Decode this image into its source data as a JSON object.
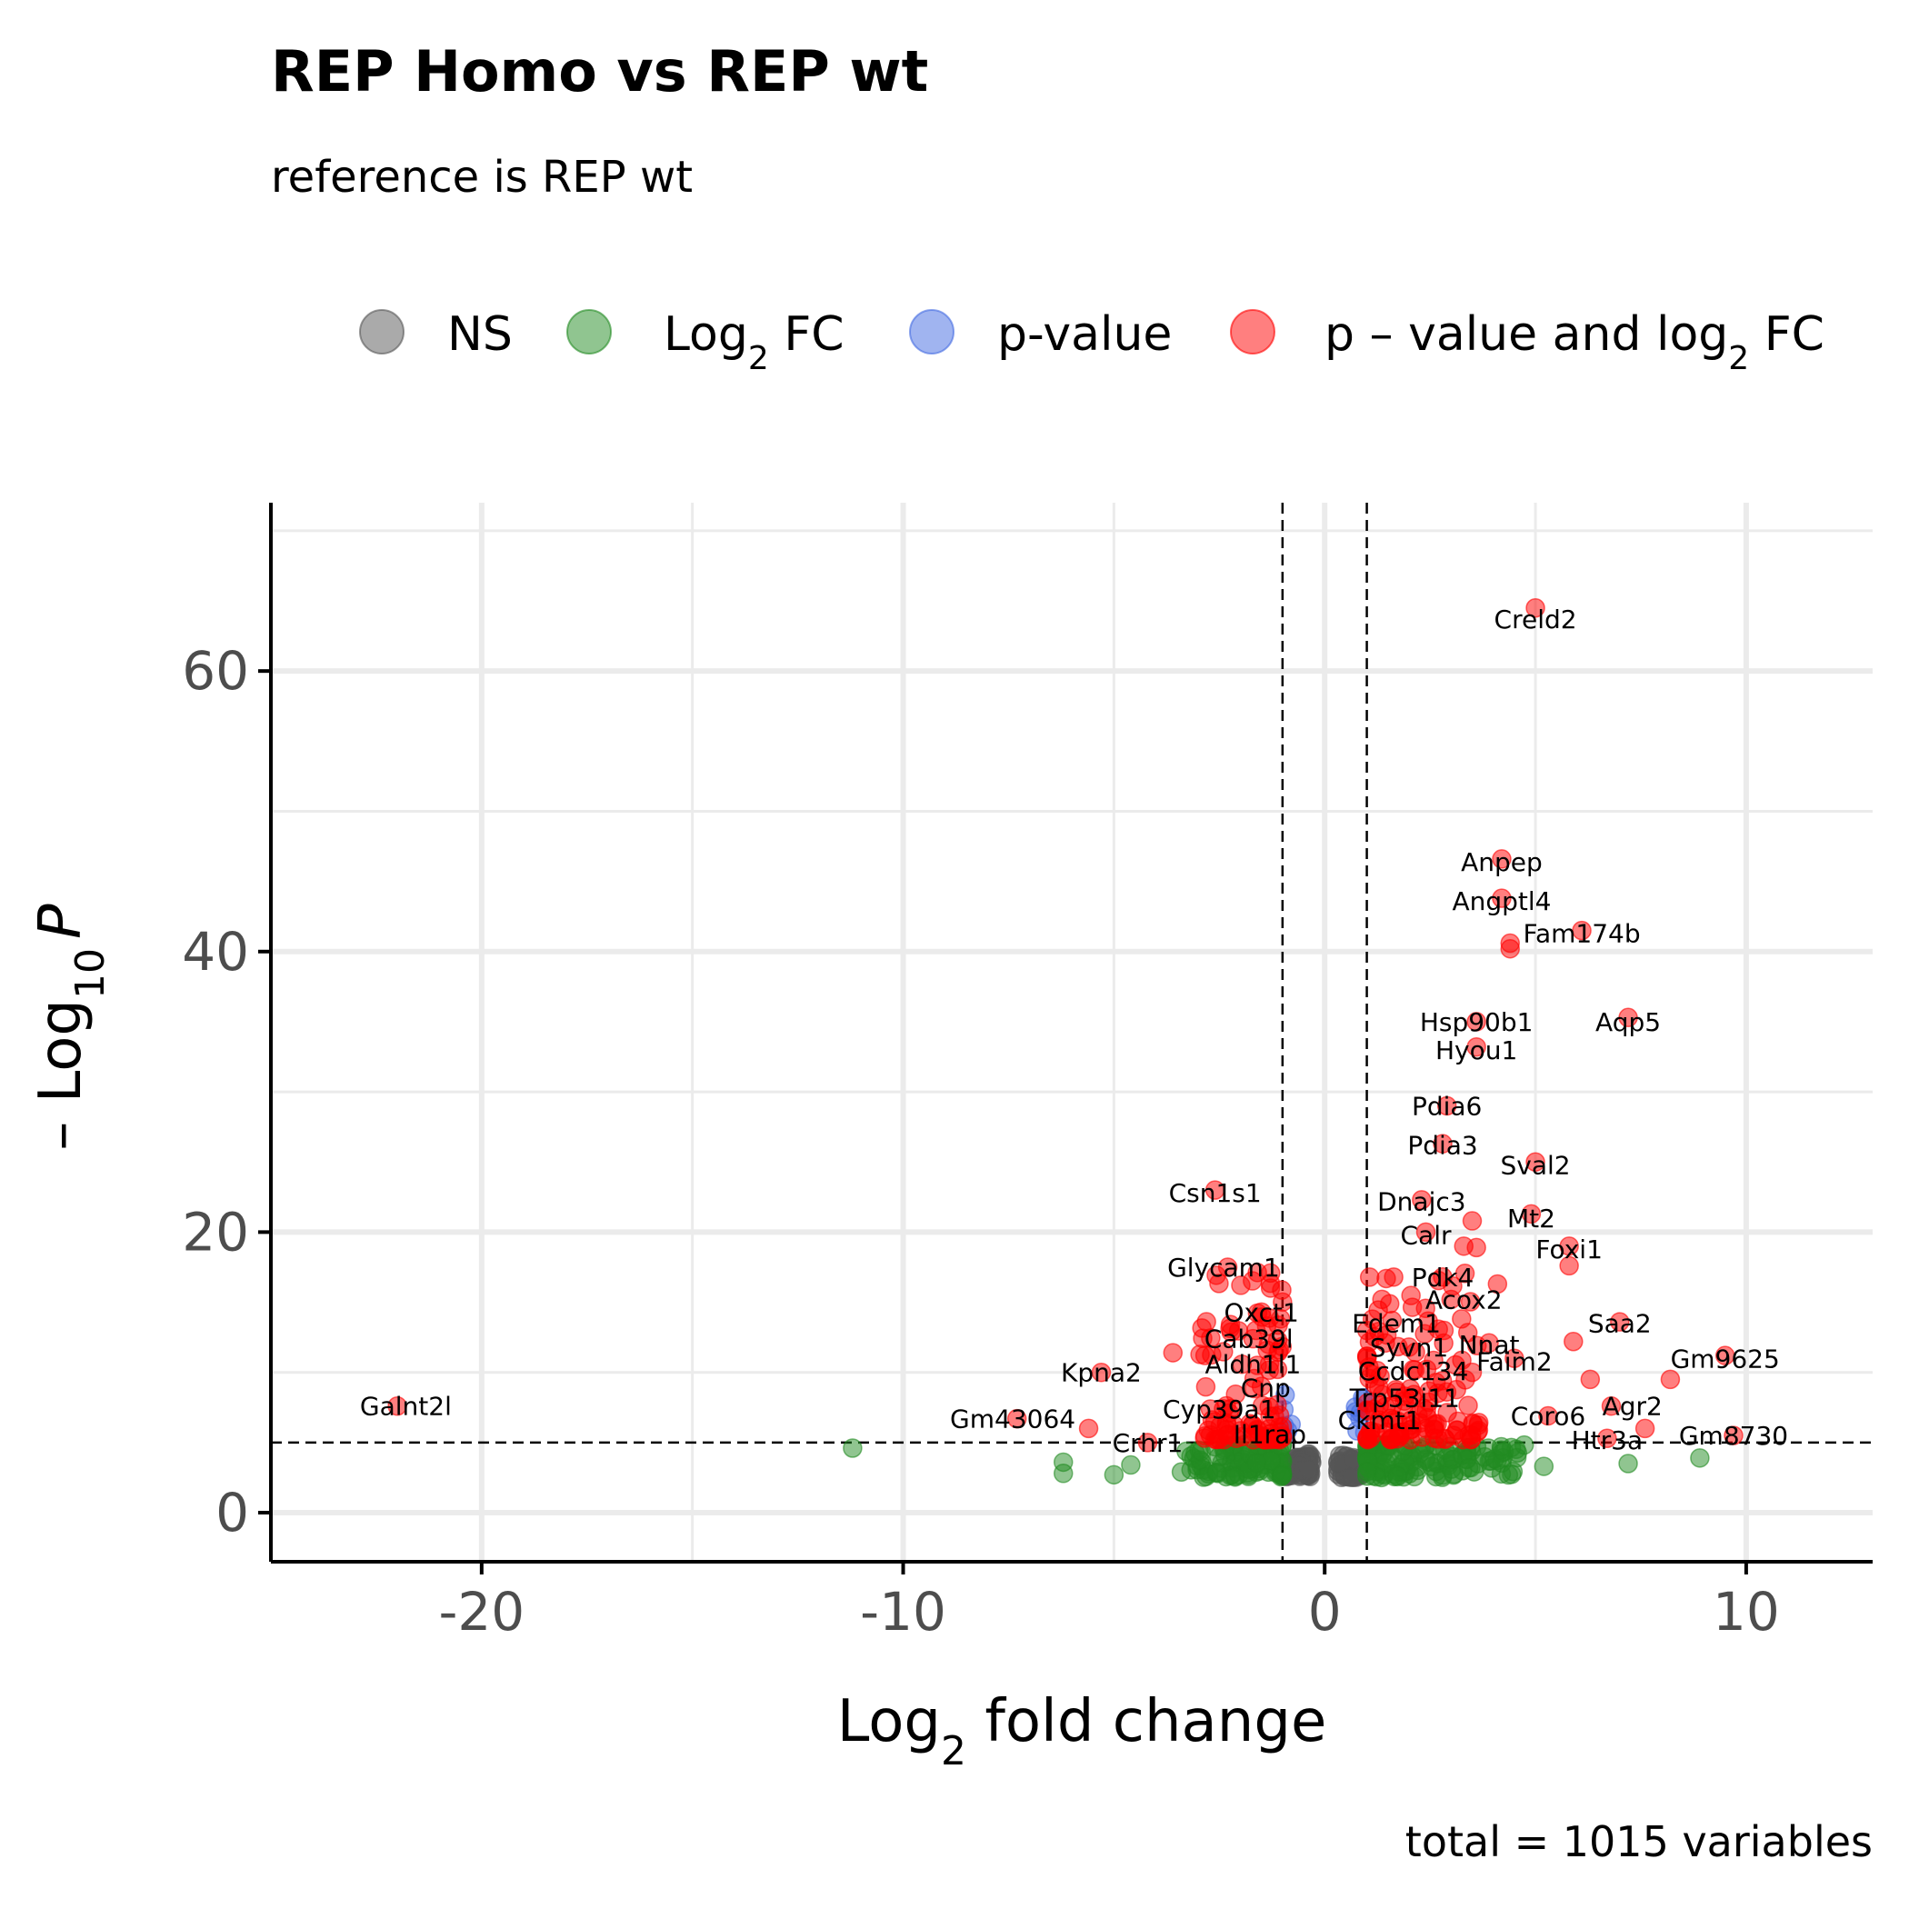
{
  "chart_data": {
    "type": "scatter",
    "title": "REP Homo vs REP wt",
    "subtitle": "reference is REP wt",
    "caption": "total = 1015 variables",
    "xlabel": {
      "main": "Log",
      "sub": "2",
      "rest": " fold change"
    },
    "ylabel": {
      "prefix": "– Log",
      "sub": "10",
      "italic": "P"
    },
    "xlim": [
      -25,
      13
    ],
    "ylim": [
      -3.5,
      72
    ],
    "x_ticks": [
      -20,
      -10,
      0,
      10
    ],
    "y_ticks": [
      0,
      20,
      40,
      60
    ],
    "grid": true,
    "fc_cutoff": 1,
    "p_cutoff_neglog10": 5,
    "legend": {
      "position": "top",
      "items": [
        {
          "key": "NS",
          "label": "NS",
          "color": "#555555"
        },
        {
          "key": "FC",
          "label": "Log",
          "sub": "2",
          "rest": " FC",
          "color": "#228b22"
        },
        {
          "key": "P",
          "label": "p-value",
          "color": "#4169e1"
        },
        {
          "key": "FC_P",
          "label": "p – value and log",
          "sub": "2",
          "rest": " FC",
          "color": "#ff0000"
        }
      ]
    },
    "labeled_points": [
      {
        "gene": "Creld2",
        "x": 5.0,
        "y": 64.5
      },
      {
        "gene": "Anpep",
        "x": 4.2,
        "y": 46.6
      },
      {
        "gene": "Angptl4",
        "x": 4.2,
        "y": 43.8
      },
      {
        "gene": "Fam174b",
        "x": 6.1,
        "y": 41.5
      },
      {
        "gene": "Hsp90b1",
        "x": 3.6,
        "y": 35.0
      },
      {
        "gene": "Aqp5",
        "x": 7.2,
        "y": 35.3
      },
      {
        "gene": "Hyou1",
        "x": 3.6,
        "y": 33.2
      },
      {
        "gene": "Pdia6",
        "x": 2.9,
        "y": 29.0
      },
      {
        "gene": "Pdia3",
        "x": 2.8,
        "y": 26.3
      },
      {
        "gene": "Sval2",
        "x": 5.0,
        "y": 25.0
      },
      {
        "gene": "Csn1s1",
        "x": -2.6,
        "y": 23.0
      },
      {
        "gene": "Dnajc3",
        "x": 2.3,
        "y": 22.3
      },
      {
        "gene": "Mt2",
        "x": 4.9,
        "y": 21.3
      },
      {
        "gene": "Calr",
        "x": 2.4,
        "y": 20.0
      },
      {
        "gene": "Foxi1",
        "x": 5.8,
        "y": 19.0
      },
      {
        "gene": "Glycam1",
        "x": -2.3,
        "y": 17.5
      },
      {
        "gene": "Pdk4",
        "x": 2.8,
        "y": 16.8
      },
      {
        "gene": "Acox2",
        "x": 3.0,
        "y": 15.2
      },
      {
        "gene": "Oxct1",
        "x": -1.5,
        "y": 14.3
      },
      {
        "gene": "Saa2",
        "x": 7.0,
        "y": 13.6
      },
      {
        "gene": "Edem1",
        "x": 1.6,
        "y": 13.7
      },
      {
        "gene": "Cab39l",
        "x": -1.7,
        "y": 12.4
      },
      {
        "gene": "Nnat",
        "x": 3.9,
        "y": 12.1
      },
      {
        "gene": "Syvn1",
        "x": 2.0,
        "y": 11.8
      },
      {
        "gene": "Gm9625",
        "x": 9.5,
        "y": 11.2
      },
      {
        "gene": "Faim2",
        "x": 4.5,
        "y": 11.0
      },
      {
        "gene": "Aldh1l1",
        "x": -1.6,
        "y": 10.5
      },
      {
        "gene": "Kpna2",
        "x": -5.3,
        "y": 10.0
      },
      {
        "gene": "Ccdc134",
        "x": 2.1,
        "y": 10.2
      },
      {
        "gene": "Cnp",
        "x": -1.5,
        "y": 9.0
      },
      {
        "gene": "Galnt2l",
        "x": -22.0,
        "y": 7.6
      },
      {
        "gene": "Trp53i11",
        "x": 1.9,
        "y": 8.3
      },
      {
        "gene": "Agr2",
        "x": 6.8,
        "y": 7.6
      },
      {
        "gene": "Cyp39a1",
        "x": -2.4,
        "y": 7.4
      },
      {
        "gene": "Coro6",
        "x": 5.3,
        "y": 6.9
      },
      {
        "gene": "Gm43064",
        "x": -7.3,
        "y": 6.7
      },
      {
        "gene": "Ckmt1",
        "x": 1.3,
        "y": 6.6
      },
      {
        "gene": "Il1rap",
        "x": -1.3,
        "y": 5.6
      },
      {
        "gene": "Gm8730",
        "x": 9.7,
        "y": 5.5
      },
      {
        "gene": "Htr3a",
        "x": 6.7,
        "y": 5.3
      },
      {
        "gene": "Crhr1",
        "x": -4.2,
        "y": 5.0
      }
    ],
    "label_positions": [
      {
        "x": 5.0,
        "y": 63.7
      },
      {
        "x": 4.2,
        "y": 46.4
      },
      {
        "x": 4.2,
        "y": 43.6
      },
      {
        "x": 6.1,
        "y": 41.3
      },
      {
        "x": 3.6,
        "y": 35.0
      },
      {
        "x": 7.2,
        "y": 35.0
      },
      {
        "x": 3.6,
        "y": 33.0
      },
      {
        "x": 2.9,
        "y": 29.0
      },
      {
        "x": 2.8,
        "y": 26.2
      },
      {
        "x": 5.0,
        "y": 24.8
      },
      {
        "x": -2.6,
        "y": 22.8
      },
      {
        "x": 2.3,
        "y": 22.2
      },
      {
        "x": 4.9,
        "y": 21.0
      },
      {
        "x": 2.4,
        "y": 19.8
      },
      {
        "x": 5.8,
        "y": 18.8
      },
      {
        "x": -2.4,
        "y": 17.5
      },
      {
        "x": 2.8,
        "y": 16.8
      },
      {
        "x": 3.3,
        "y": 15.2
      },
      {
        "x": -1.5,
        "y": 14.3
      },
      {
        "x": 7.0,
        "y": 13.5
      },
      {
        "x": 1.7,
        "y": 13.5
      },
      {
        "x": -1.8,
        "y": 12.4
      },
      {
        "x": 3.9,
        "y": 12.0
      },
      {
        "x": 2.0,
        "y": 11.8
      },
      {
        "x": 9.5,
        "y": 11.0
      },
      {
        "x": 4.5,
        "y": 10.8
      },
      {
        "x": -1.7,
        "y": 10.6
      },
      {
        "x": -5.3,
        "y": 10.0
      },
      {
        "x": 2.1,
        "y": 10.1
      },
      {
        "x": -1.4,
        "y": 8.9
      },
      {
        "x": -21.8,
        "y": 7.6
      },
      {
        "x": 1.9,
        "y": 8.2
      },
      {
        "x": 7.3,
        "y": 7.6
      },
      {
        "x": -2.5,
        "y": 7.4
      },
      {
        "x": 5.3,
        "y": 6.9
      },
      {
        "x": -7.4,
        "y": 6.7
      },
      {
        "x": 1.3,
        "y": 6.6
      },
      {
        "x": -1.3,
        "y": 5.6
      },
      {
        "x": 9.7,
        "y": 5.5
      },
      {
        "x": 6.7,
        "y": 5.2
      },
      {
        "x": -4.2,
        "y": 5.0
      }
    ],
    "extra_points": [
      {
        "x": -11.2,
        "y": 4.6,
        "group": "FC"
      },
      {
        "x": -6.2,
        "y": 3.6,
        "group": "FC"
      },
      {
        "x": -6.2,
        "y": 2.8,
        "group": "FC"
      },
      {
        "x": -5.6,
        "y": 6.0,
        "group": "FC_P"
      },
      {
        "x": -5.0,
        "y": 2.7,
        "group": "FC"
      },
      {
        "x": -4.6,
        "y": 3.4,
        "group": "FC"
      },
      {
        "x": -3.6,
        "y": 11.4,
        "group": "FC_P"
      },
      {
        "x": -3.4,
        "y": 2.9,
        "group": "FC"
      },
      {
        "x": 7.2,
        "y": 3.5,
        "group": "FC"
      },
      {
        "x": 8.9,
        "y": 3.9,
        "group": "FC"
      },
      {
        "x": 8.2,
        "y": 9.5,
        "group": "FC_P"
      },
      {
        "x": 7.6,
        "y": 6.0,
        "group": "FC_P"
      },
      {
        "x": 6.3,
        "y": 9.5,
        "group": "FC_P"
      },
      {
        "x": 5.9,
        "y": 12.2,
        "group": "FC_P"
      },
      {
        "x": 5.2,
        "y": 3.3,
        "group": "FC"
      },
      {
        "x": 5.8,
        "y": 17.6,
        "group": "FC_P"
      },
      {
        "x": 4.1,
        "y": 16.3,
        "group": "FC_P"
      },
      {
        "x": 4.4,
        "y": 40.2,
        "group": "FC_P"
      },
      {
        "x": 4.4,
        "y": 40.6,
        "group": "FC_P"
      },
      {
        "x": 3.6,
        "y": 18.9,
        "group": "FC_P"
      },
      {
        "x": 3.3,
        "y": 19.0,
        "group": "FC_P"
      },
      {
        "x": 3.5,
        "y": 20.8,
        "group": "FC_P"
      }
    ]
  }
}
